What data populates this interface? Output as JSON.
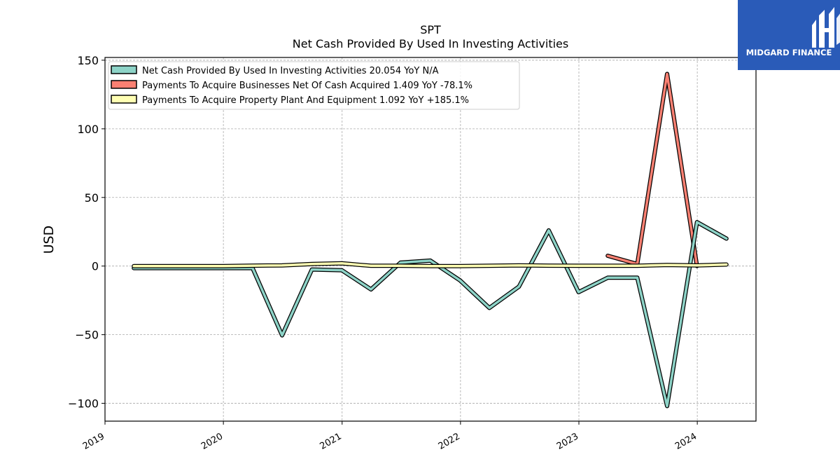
{
  "chart_data": {
    "type": "line",
    "title": "SPT",
    "subtitle": "Net Cash Provided By Used In Investing Activities",
    "xlabel": "",
    "ylabel": "USD",
    "xlim": [
      "2019-01-01",
      "2024-06-30"
    ],
    "ylim": [
      -113,
      152
    ],
    "xticks": [
      "2019",
      "2020",
      "2021",
      "2022",
      "2023",
      "2024"
    ],
    "yticks": [
      150,
      100,
      50,
      0,
      -50,
      -100
    ],
    "ytick_labels": [
      "150",
      "100",
      "50",
      "0",
      "−50",
      "−100"
    ],
    "grid": true,
    "legend_position": "top-left",
    "series": [
      {
        "name": "Net Cash Provided By Used In Investing Activities  20.054 YoY N/A",
        "color": "#8dd3c7",
        "x": [
          "2019-03-31",
          "2019-06-30",
          "2019-09-30",
          "2019-12-31",
          "2020-03-31",
          "2020-06-30",
          "2020-09-30",
          "2020-12-31",
          "2021-03-31",
          "2021-06-30",
          "2021-09-30",
          "2021-12-31",
          "2022-03-31",
          "2022-06-30",
          "2022-09-30",
          "2022-12-31",
          "2023-03-31",
          "2023-06-30",
          "2023-09-30",
          "2023-12-31",
          "2024-03-31"
        ],
        "y": [
          -1.5,
          -1.5,
          -1.5,
          -1.5,
          -1.5,
          -50.5,
          -2.5,
          -3.0,
          -17.0,
          2.5,
          4.0,
          -10.5,
          -30.5,
          -15.0,
          26.0,
          -19.0,
          -8.5,
          -8.5,
          -102.0,
          32.0,
          20.0
        ]
      },
      {
        "name": "Payments To Acquire Businesses Net Of Cash Acquired  1.409 YoY -78.1%",
        "color": "#fb8072",
        "x": [
          "2023-03-31",
          "2023-06-30",
          "2023-09-30",
          "2023-12-31"
        ],
        "y": [
          7.5,
          1.5,
          140.0,
          0.0
        ]
      },
      {
        "name": "Payments To Acquire Property Plant And Equipment  1.092 YoY +185.1%",
        "color": "#ffffb3",
        "x": [
          "2019-03-31",
          "2019-06-30",
          "2019-09-30",
          "2019-12-31",
          "2020-03-31",
          "2020-06-30",
          "2020-09-30",
          "2020-12-31",
          "2021-03-31",
          "2021-06-30",
          "2021-09-30",
          "2021-12-31",
          "2022-03-31",
          "2022-06-30",
          "2022-09-30",
          "2022-12-31",
          "2023-03-31",
          "2023-06-30",
          "2023-09-30",
          "2023-12-31",
          "2024-03-31"
        ],
        "y": [
          0.0,
          0.0,
          0.0,
          0.0,
          0.3,
          0.5,
          1.5,
          2.0,
          0.2,
          0.2,
          0.0,
          0.0,
          0.2,
          0.5,
          0.3,
          0.2,
          0.2,
          0.2,
          0.8,
          0.5,
          1.1
        ]
      }
    ]
  },
  "logo": {
    "text": "MIDGARD FINANCE",
    "background": "#2a5bb8"
  }
}
